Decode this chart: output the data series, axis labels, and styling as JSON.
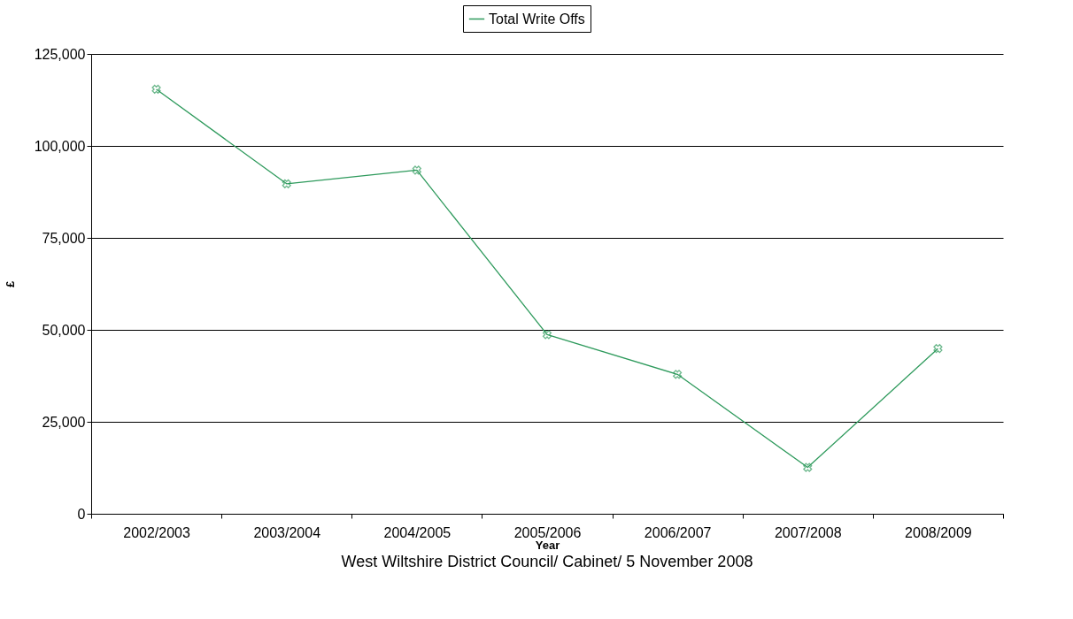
{
  "chart_data": {
    "type": "line",
    "xlabel": "Year",
    "ylabel": "£",
    "categories": [
      "2002/2003",
      "2003/2004",
      "2004/2005",
      "2005/2006",
      "2006/2007",
      "2007/2008",
      "2008/2009"
    ],
    "series": [
      {
        "name": "Total Write Offs",
        "color": "#2e9a5c",
        "values": [
          115400,
          89700,
          93400,
          48700,
          37900,
          12600,
          44900
        ]
      }
    ],
    "ylim": [
      0,
      125000
    ],
    "yticks": [
      0,
      {
        "value": 25000,
        "label": "25,000"
      },
      {
        "value": 50000,
        "label": "50,000"
      },
      {
        "value": 75000,
        "label": "75,000"
      },
      {
        "value": 100000,
        "label": "100,000"
      },
      {
        "value": 125000,
        "label": "125,000"
      }
    ],
    "grid": "y",
    "legend": "top",
    "marker": "cross",
    "line_style": "solid",
    "annotations": [
      "West Wiltshire District Council/ Cabinet/ 5 November 2008"
    ]
  }
}
